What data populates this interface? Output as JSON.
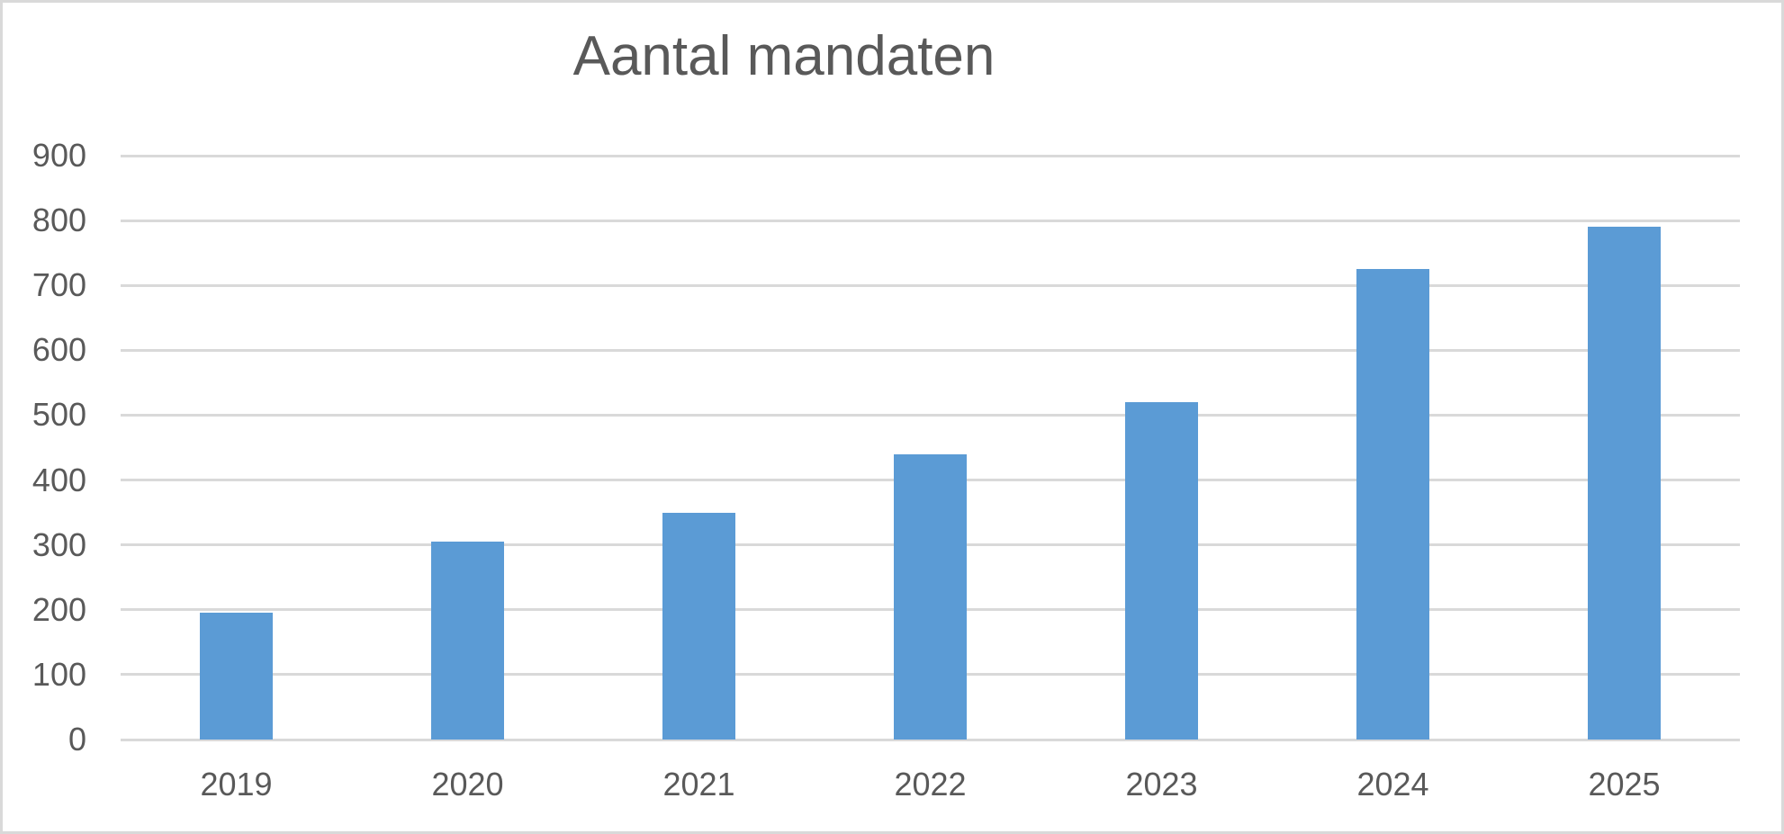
{
  "chart_data": {
    "type": "bar",
    "title": "Aantal mandaten",
    "categories": [
      "2019",
      "2020",
      "2021",
      "2022",
      "2023",
      "2024",
      "2025"
    ],
    "values": [
      195,
      305,
      350,
      440,
      520,
      725,
      790
    ],
    "xlabel": "",
    "ylabel": "",
    "ylim": [
      0,
      900
    ],
    "yticks": [
      0,
      100,
      200,
      300,
      400,
      500,
      600,
      700,
      800,
      900
    ],
    "grid": true,
    "legend": false,
    "colors": {
      "bar": "#5B9BD5",
      "gridline": "#D9D9D9",
      "axis_text": "#595959",
      "title_text": "#595959",
      "background": "#FFFFFF",
      "chart_border": "#D9D9D9"
    }
  }
}
